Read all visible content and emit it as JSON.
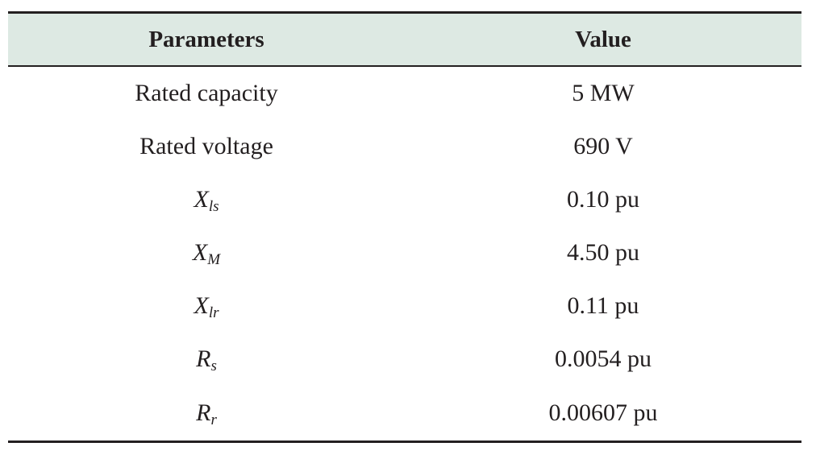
{
  "table": {
    "headers": [
      "Parameters",
      "Value"
    ],
    "rows": [
      {
        "param": "Rated capacity",
        "param_sub": "",
        "italic": false,
        "value": "5 MW"
      },
      {
        "param": "Rated voltage",
        "param_sub": "",
        "italic": false,
        "value": "690 V"
      },
      {
        "param": "X",
        "param_sub": "ls",
        "italic": true,
        "value": "0.10 pu"
      },
      {
        "param": "X",
        "param_sub": "M",
        "italic": true,
        "value": "4.50 pu"
      },
      {
        "param": "X",
        "param_sub": "lr",
        "italic": true,
        "value": "0.11 pu"
      },
      {
        "param": "R",
        "param_sub": "s",
        "italic": true,
        "value": "0.0054 pu"
      },
      {
        "param": "R",
        "param_sub": "r",
        "italic": true,
        "value": "0.00607 pu"
      }
    ]
  }
}
